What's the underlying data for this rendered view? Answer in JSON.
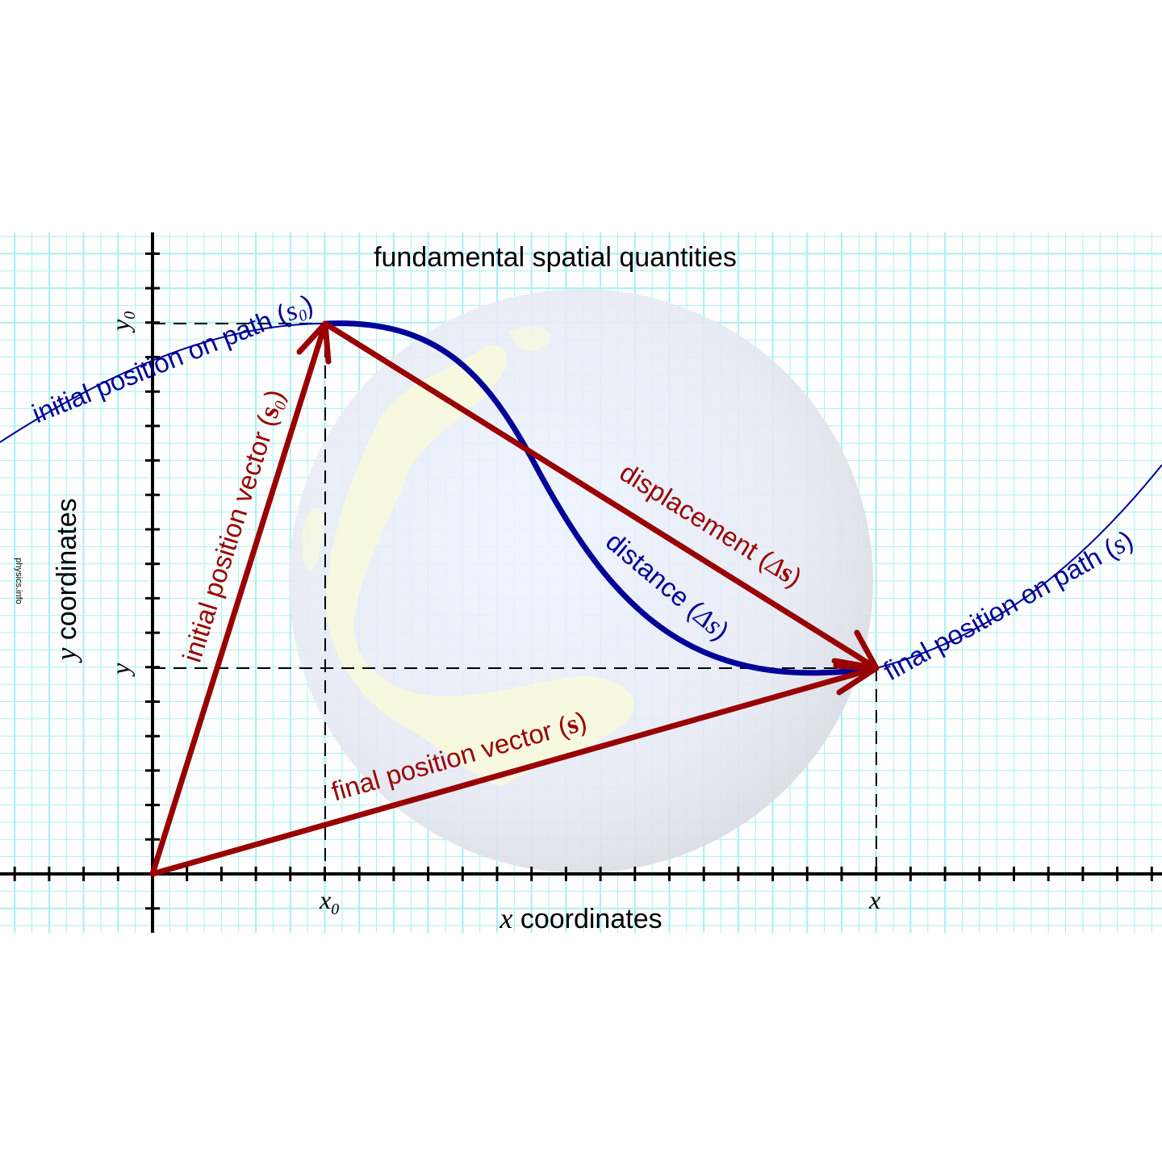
{
  "title": "fundamental spatial quantities",
  "watermark": "physics.info",
  "axes": {
    "x_label": {
      "var": "x",
      "text": " coordinates"
    },
    "y_label": {
      "var": "y",
      "text": " coordinates"
    },
    "x0_tick": {
      "var": "x",
      "sub": "0"
    },
    "x_tick": {
      "var": "x"
    },
    "y0_tick": {
      "var": "y",
      "sub": "0"
    },
    "y_tick": {
      "var": "y"
    }
  },
  "labels": {
    "initial_path": {
      "text": "initial position on path (",
      "sym": "s",
      "sub": "0",
      "close": ")"
    },
    "final_path": {
      "text": "final position on path (",
      "sym": "s",
      "close": ")"
    },
    "initial_vector": {
      "text": "initial position vector (",
      "sym": "s",
      "sub": "0",
      "close": ")"
    },
    "final_vector": {
      "text": "final position vector (",
      "sym": "s",
      "close": ")"
    },
    "displacement": {
      "text": "displacement (",
      "delta": "Δ",
      "sym": "s",
      "close": ")"
    },
    "distance": {
      "text": "distance (",
      "delta": "Δ",
      "sym": "s",
      "close": ")"
    }
  },
  "colors": {
    "path_blue": "#000099",
    "vector_red": "#990000",
    "grid": "#a8f0f0",
    "axis": "#000000",
    "globe": "#e0e2ea",
    "land": "#fbfbd8"
  }
}
